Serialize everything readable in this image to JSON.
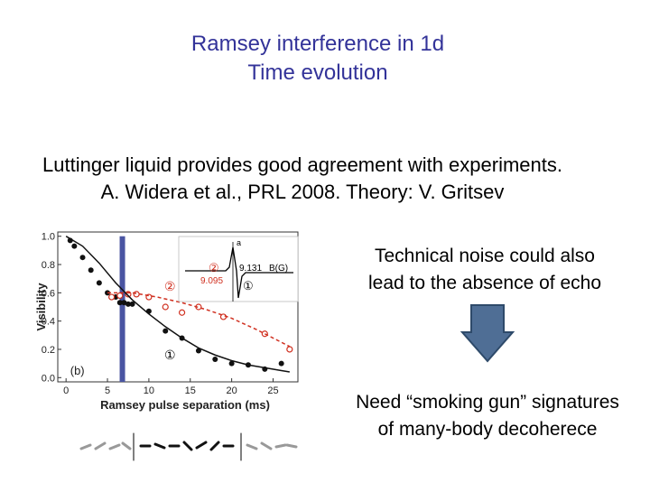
{
  "title": "Ramsey interference in 1d",
  "subtitle": "Time evolution",
  "body_lines": [
    "Luttinger liquid provides good agreement with experiments.",
    "A. Widera et al., PRL 2008. Theory: V. Gritsev"
  ],
  "note_lines": [
    "Technical noise could also",
    "lead to the absence of echo"
  ],
  "conclusion_lines": [
    "Need “smoking gun” signatures",
    "of many-body decoherece"
  ],
  "inset_labels": {
    "a": "a",
    "field_axis": "B(G)",
    "value_high": "9.131",
    "value_low": "9.095",
    "marker_2": "②",
    "marker_1": "①"
  },
  "plot_markers": {
    "red": "②",
    "black": "①"
  },
  "chart_data": {
    "type": "scatter",
    "panel_label": "(b)",
    "x_label": "Ramsey pulse separation (ms)",
    "y_label": "Visibility",
    "xlim": [
      -1,
      28
    ],
    "ylim": [
      -0.03,
      1.03
    ],
    "xticks": [
      0,
      5,
      10,
      15,
      20,
      25
    ],
    "yticks": [
      {
        "value": 0,
        "label": "0.0"
      },
      0.2,
      0.4,
      0.6,
      0.8,
      {
        "value": 1,
        "label": "1.0"
      }
    ],
    "highlight_x": 6.8,
    "highlight_color": "#4a55a2",
    "series": [
      {
        "style": "points",
        "color": "#111111",
        "x": [
          0.5,
          1,
          2,
          3,
          4,
          5,
          6,
          6.5,
          7,
          7.5,
          8,
          10,
          12,
          14,
          16,
          18,
          20,
          22,
          24,
          26
        ],
        "values": [
          0.97,
          0.93,
          0.85,
          0.76,
          0.67,
          0.6,
          0.57,
          0.53,
          0.53,
          0.52,
          0.52,
          0.47,
          0.33,
          0.28,
          0.19,
          0.13,
          0.1,
          0.09,
          0.06,
          0.1
        ]
      },
      {
        "style": "open",
        "color": "#d03020",
        "x": [
          5.5,
          6.5,
          7.5,
          8.5,
          10,
          12,
          14,
          16,
          19,
          24,
          27
        ],
        "values": [
          0.57,
          0.58,
          0.59,
          0.59,
          0.57,
          0.5,
          0.46,
          0.5,
          0.43,
          0.31,
          0.2
        ]
      },
      {
        "style": "line",
        "color": "#111111",
        "x": [
          0,
          2,
          4,
          6,
          8,
          10,
          12,
          14,
          16,
          18,
          20,
          22,
          24,
          26,
          27
        ],
        "values": [
          1.0,
          0.93,
          0.81,
          0.67,
          0.55,
          0.45,
          0.36,
          0.28,
          0.21,
          0.16,
          0.12,
          0.09,
          0.07,
          0.05,
          0.04
        ]
      },
      {
        "style": "dashed",
        "color": "#d03020",
        "x": [
          5,
          8,
          11,
          14,
          17,
          20,
          23,
          26,
          27
        ],
        "values": [
          0.6,
          0.6,
          0.57,
          0.53,
          0.48,
          0.42,
          0.34,
          0.25,
          0.22
        ]
      }
    ]
  }
}
